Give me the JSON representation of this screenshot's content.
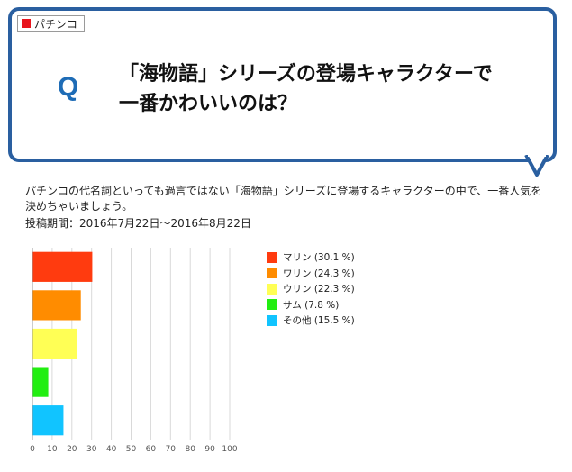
{
  "category_tag": "パチンコ",
  "question_mark": "Q",
  "question_title": "「海物語」シリーズの登場キャラクターで一番かわいいのは？",
  "description": "パチンコの代名詞といっても過言ではない「海物語」シリーズに登場するキャラクターの中で、一番人気を決めちゃいましょう。",
  "period": "投稿期間：2016年7月22日〜2016年8月22日",
  "colors": {
    "frame": "#2a5fa0",
    "q_letter": "#1e6cb6",
    "tag_square": "#e8141d"
  },
  "chart_data": {
    "type": "bar",
    "orientation": "horizontal",
    "categories": [
      "マリン",
      "ワリン",
      "ウリン",
      "サム",
      "その他"
    ],
    "values": [
      30.1,
      24.3,
      22.3,
      7.8,
      15.5
    ],
    "legend_labels": [
      "マリン (30.1 %)",
      "ワリン (24.3 %)",
      "ウリン (22.3 %)",
      "サム (7.8 %)",
      "その他 (15.5 %)"
    ],
    "colors": [
      "#ff3b0f",
      "#ff8c00",
      "#ffff55",
      "#22ee11",
      "#11c4ff"
    ],
    "xlim": [
      0,
      100
    ],
    "xticks": [
      "0",
      "10",
      "20",
      "30",
      "40",
      "50",
      "60",
      "70",
      "80",
      "90",
      "100"
    ],
    "grid": true,
    "legend_position": "right"
  }
}
